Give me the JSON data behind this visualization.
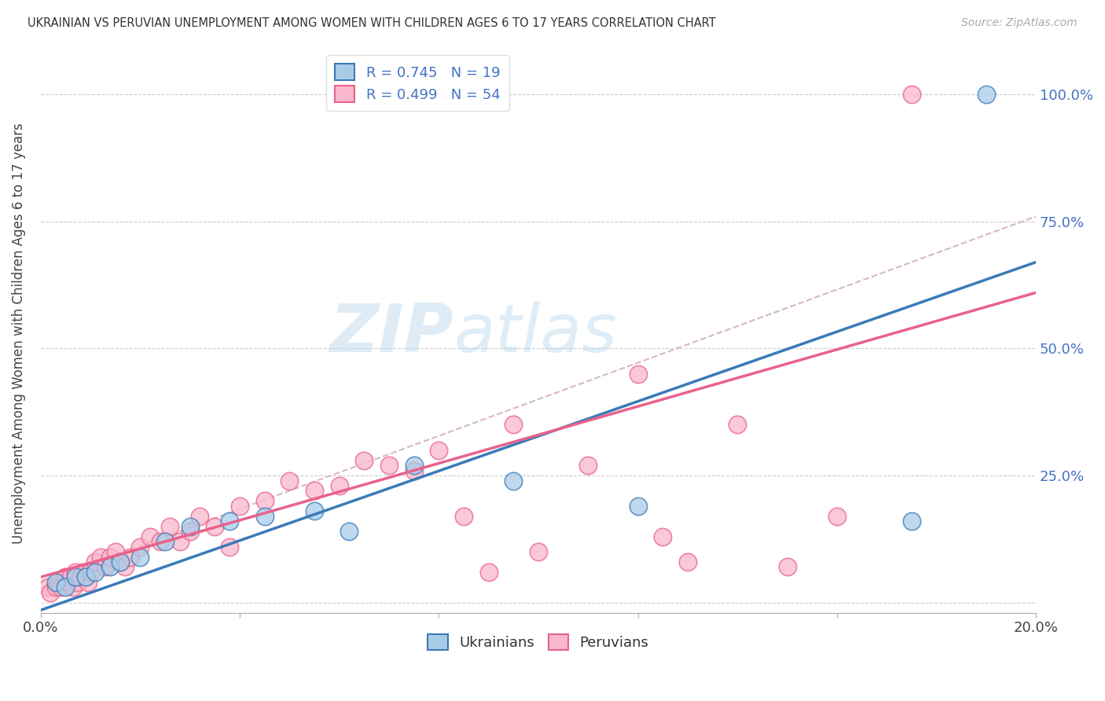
{
  "title": "UKRAINIAN VS PERUVIAN UNEMPLOYMENT AMONG WOMEN WITH CHILDREN AGES 6 TO 17 YEARS CORRELATION CHART",
  "source": "Source: ZipAtlas.com",
  "ylabel_label": "Unemployment Among Women with Children Ages 6 to 17 years",
  "xlim": [
    0.0,
    20.0
  ],
  "ylim": [
    -2.0,
    108.0
  ],
  "legend_label1": "R = 0.745   N = 19",
  "legend_label2": "R = 0.499   N = 54",
  "legend_bottom1": "Ukrainians",
  "legend_bottom2": "Peruvians",
  "color_blue": "#a8cce8",
  "color_pink": "#f9b8cb",
  "color_blue_line": "#3a7ab8",
  "color_pink_line": "#e8628a",
  "color_dashed": "#d8b8c0",
  "watermark_zip": "ZIP",
  "watermark_atlas": "atlas",
  "uk_line_x0": 0.0,
  "uk_line_y0": -1.5,
  "uk_line_x1": 20.0,
  "uk_line_y1": 67.0,
  "pe_line_x0": 0.0,
  "pe_line_y0": 5.0,
  "pe_line_x1": 20.0,
  "pe_line_y1": 61.0,
  "dash_line_x0": 0.0,
  "dash_line_y0": 4.0,
  "dash_line_x1": 20.0,
  "dash_line_y1": 76.0,
  "ukrainian_x": [
    0.3,
    0.5,
    0.7,
    0.9,
    1.1,
    1.4,
    1.6,
    2.0,
    2.5,
    3.0,
    3.8,
    4.5,
    5.5,
    6.2,
    7.5,
    9.5,
    12.0,
    17.5,
    19.0
  ],
  "ukrainian_y": [
    4,
    3,
    5,
    5,
    6,
    7,
    8,
    9,
    12,
    15,
    16,
    17,
    18,
    14,
    27,
    24,
    19,
    16,
    100
  ],
  "peruvian_x": [
    0.15,
    0.2,
    0.3,
    0.35,
    0.4,
    0.5,
    0.55,
    0.6,
    0.65,
    0.7,
    0.75,
    0.8,
    0.85,
    0.9,
    0.95,
    1.0,
    1.1,
    1.2,
    1.3,
    1.4,
    1.5,
    1.6,
    1.7,
    1.8,
    2.0,
    2.2,
    2.4,
    2.6,
    2.8,
    3.0,
    3.2,
    3.5,
    3.8,
    4.0,
    4.5,
    5.0,
    5.5,
    6.0,
    6.5,
    7.0,
    7.5,
    8.0,
    8.5,
    9.0,
    9.5,
    10.0,
    11.0,
    12.0,
    12.5,
    13.0,
    14.0,
    15.0,
    16.0,
    17.5
  ],
  "peruvian_y": [
    3,
    2,
    3,
    4,
    3,
    5,
    4,
    5,
    3,
    6,
    4,
    5,
    6,
    5,
    4,
    6,
    8,
    9,
    7,
    9,
    10,
    8,
    7,
    9,
    11,
    13,
    12,
    15,
    12,
    14,
    17,
    15,
    11,
    19,
    20,
    24,
    22,
    23,
    28,
    27,
    26,
    30,
    17,
    6,
    35,
    10,
    27,
    45,
    13,
    8,
    35,
    7,
    17,
    100
  ]
}
